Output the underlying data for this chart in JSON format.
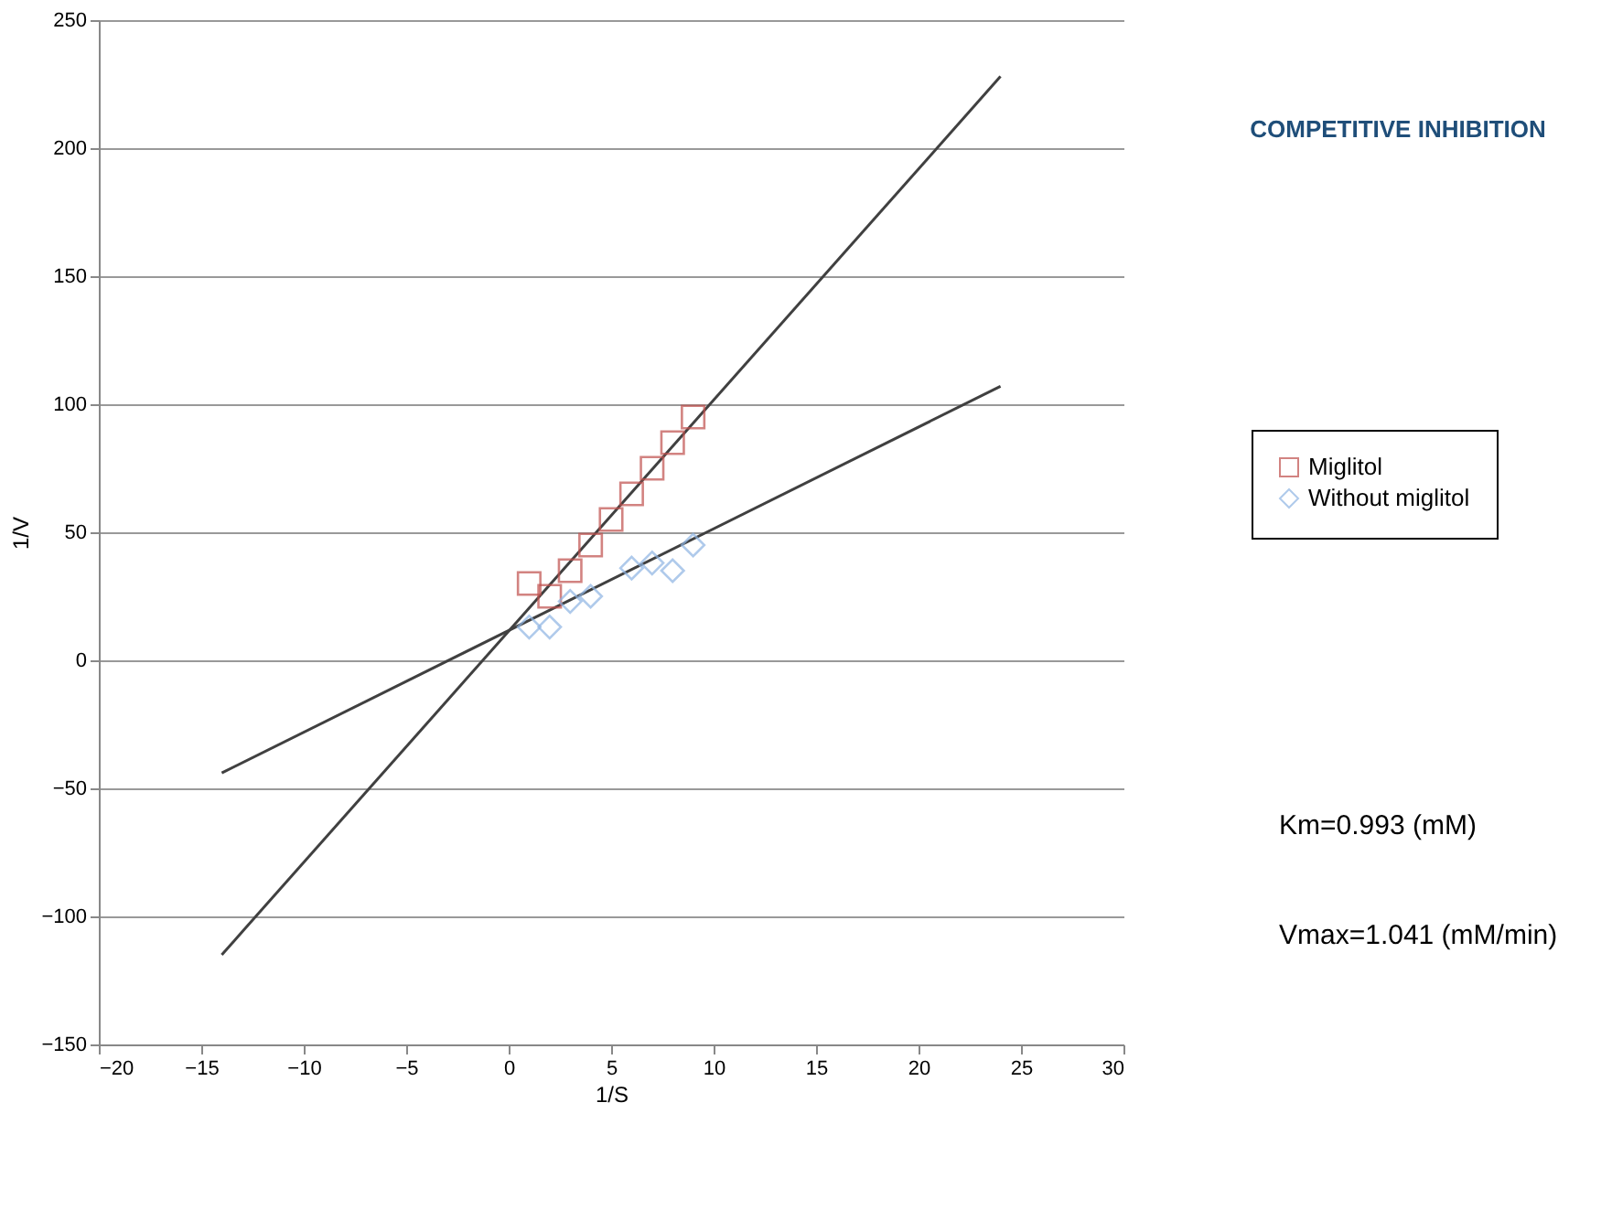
{
  "chart_data": {
    "type": "scatter",
    "title": "COMPETITIVE INHIBITION",
    "xlabel": "1/S",
    "ylabel": "1/V",
    "xlim": [
      -20,
      30
    ],
    "xticks": [
      -20,
      -15,
      -10,
      -5,
      0,
      5,
      10,
      15,
      20,
      25,
      30
    ],
    "ylim": [
      -150,
      250
    ],
    "yticks": [
      -150,
      -100,
      -50,
      0,
      50,
      100,
      150,
      200,
      250
    ],
    "grid": "y",
    "legend": "right",
    "series": [
      {
        "name": "Miglitol",
        "color": "#c0504d",
        "marker": "square",
        "x": [
          1,
          2,
          3,
          4,
          5,
          6,
          7,
          8,
          9
        ],
        "values": [
          30,
          25,
          35,
          45,
          55,
          65,
          75,
          85,
          95
        ]
      },
      {
        "name": "Without miglitol",
        "color": "#8eb4e3",
        "marker": "diamond",
        "x": [
          1,
          2,
          3,
          4,
          6,
          7,
          8,
          9
        ],
        "values": [
          13,
          13,
          23,
          25,
          36,
          38,
          35,
          45
        ]
      },
      {
        "type": "line",
        "color": "#404040",
        "line_style": "solid",
        "x": [
          -14,
          24
        ],
        "values": [
          -115,
          228
        ]
      },
      {
        "type": "line",
        "color": "#404040",
        "line_style": "solid",
        "x": [
          -14,
          24
        ],
        "values": [
          -44,
          107
        ]
      }
    ],
    "annotations": [
      "Km=0.993 (mM)",
      "Vmax=1.041 (mM/min)"
    ]
  }
}
